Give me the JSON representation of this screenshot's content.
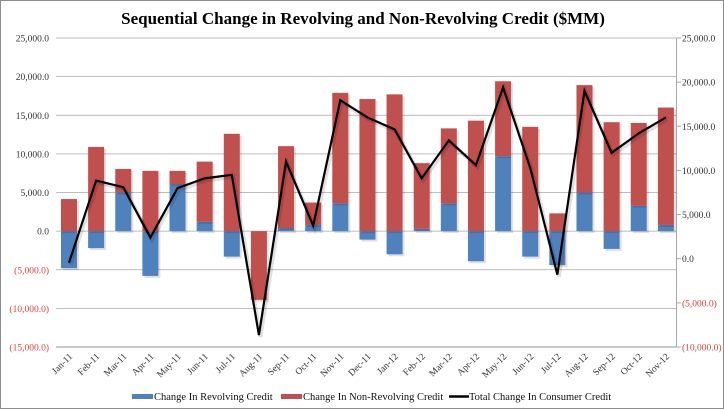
{
  "chart_data": {
    "type": "bar",
    "subtype": "stacked-bar-with-line-secondary-axis",
    "title": "Sequential Change in Revolving and Non-Revolving Credit ($MM)",
    "xlabel": "",
    "ylabel": "",
    "categories": [
      "Jan-11",
      "Feb-11",
      "Mar-11",
      "Apr-11",
      "May-11",
      "Jun-11",
      "Jul-11",
      "Aug-11",
      "Sep-11",
      "Oct-11",
      "Nov-11",
      "Dec-11",
      "Jan-12",
      "Feb-12",
      "Mar-12",
      "Apr-12",
      "May-12",
      "Jun-12",
      "Jul-12",
      "Aug-12",
      "Sep-12",
      "Oct-12",
      "Nov-12"
    ],
    "series": [
      {
        "name": "Change In Revolving Credit",
        "type": "bar",
        "axis": "left",
        "color": "#4F81BD",
        "values": [
          -4800,
          -2200,
          5000,
          -5800,
          6100,
          1200,
          -3300,
          0,
          400,
          800,
          3600,
          -1100,
          -3000,
          300,
          3600,
          -3900,
          9700,
          -3300,
          -4400,
          5000,
          -2300,
          3300,
          800
        ]
      },
      {
        "name": "Change In Non-Revolving Credit",
        "type": "bar",
        "axis": "left",
        "color": "#C0504D",
        "values": [
          4150,
          10900,
          3050,
          7800,
          1700,
          7800,
          12600,
          -8900,
          10600,
          2900,
          14300,
          17100,
          17700,
          8500,
          9700,
          14300,
          9700,
          13500,
          2300,
          13900,
          14100,
          10700,
          15200
        ]
      },
      {
        "name": "Total Change In Consumer Credit",
        "type": "line",
        "axis": "right",
        "color": "#000000",
        "values": [
          -450,
          8850,
          8100,
          2400,
          8000,
          9100,
          9500,
          -8650,
          11000,
          3750,
          17950,
          16000,
          14650,
          9100,
          13400,
          10600,
          19400,
          10300,
          -1800,
          19000,
          12000,
          14200,
          16000
        ]
      }
    ],
    "y_left": {
      "ylim": [
        -15000,
        25000
      ],
      "ticks": [
        25000,
        20000,
        15000,
        10000,
        5000,
        0,
        -5000,
        -10000,
        -15000
      ],
      "tick_labels": [
        "25,000.0",
        "20,000.0",
        "15,000.0",
        "10,000.0",
        "5,000.0",
        "0.0",
        "(5,000.0)",
        "(10,000.0)",
        "(15,000.0)"
      ]
    },
    "y_right": {
      "ylim": [
        -10000,
        25000
      ],
      "ticks": [
        25000,
        20000,
        15000,
        10000,
        5000,
        0,
        -5000,
        -10000
      ],
      "tick_labels": [
        "25,000.0",
        "20,000.0",
        "15,000.0",
        "10,000.0",
        "5,000.0",
        "0.0",
        "(5,000.0)",
        "(10,000.0)"
      ]
    },
    "negative_label_color": "#E0413D",
    "grid": true,
    "legend_position": "bottom"
  }
}
